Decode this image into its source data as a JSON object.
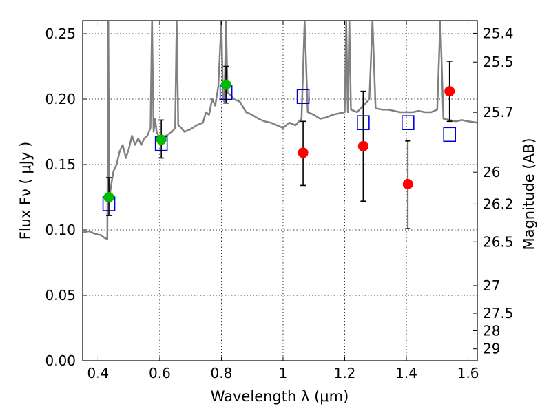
{
  "chart_data": {
    "type": "scatter",
    "title": "",
    "xlabel": "Wavelength  λ (μm)",
    "ylabel": "Flux  Fν  ( μJy )",
    "y2label": "Magnitude (AB)",
    "xlim": [
      0.35,
      1.63
    ],
    "ylim": [
      0.0,
      0.26
    ],
    "grid": true,
    "x_ticks": [
      0.4,
      0.6,
      0.8,
      1.0,
      1.2,
      1.4,
      1.6
    ],
    "x_tick_labels": [
      "0.4",
      "0.6",
      "0.8",
      "1",
      "1.2",
      "1.4",
      "1.6"
    ],
    "y_ticks": [
      0.0,
      0.05,
      0.1,
      0.15,
      0.2,
      0.25
    ],
    "y_tick_labels": [
      "0.00",
      "0.05",
      "0.10",
      "0.15",
      "0.20",
      "0.25"
    ],
    "y2_ticks": [
      {
        "label": "25.4",
        "flux": 0.2503
      },
      {
        "label": "25.5",
        "flux": 0.2283
      },
      {
        "label": "25.7",
        "flux": 0.1899
      },
      {
        "label": "26",
        "flux": 0.1441
      },
      {
        "label": "26.2",
        "flux": 0.1198
      },
      {
        "label": "26.5",
        "flux": 0.0909
      },
      {
        "label": "27",
        "flux": 0.0574
      },
      {
        "label": "27.5",
        "flux": 0.0363
      },
      {
        "label": "28",
        "flux": 0.0229
      },
      {
        "label": "29",
        "flux": 0.0091
      }
    ],
    "colors": {
      "model": "#808080",
      "green_points": "#00bb00",
      "red_points": "#ff0000",
      "squares": "#0000dd",
      "errorbars": "#000000"
    },
    "series": [
      {
        "kind": "line",
        "x": [
          0.35,
          0.37,
          0.39,
          0.41,
          0.42,
          0.43,
          0.433,
          0.436,
          0.44,
          0.445,
          0.45,
          0.46,
          0.47,
          0.48,
          0.49,
          0.5,
          0.51,
          0.52,
          0.53,
          0.54,
          0.55,
          0.56,
          0.57,
          0.575,
          0.58,
          0.585,
          0.59,
          0.6,
          0.62,
          0.64,
          0.65,
          0.655,
          0.66,
          0.67,
          0.68,
          0.7,
          0.72,
          0.74,
          0.75,
          0.76,
          0.77,
          0.78,
          0.79,
          0.8,
          0.805,
          0.81,
          0.815,
          0.82,
          0.83,
          0.84,
          0.86,
          0.88,
          0.9,
          0.92,
          0.94,
          0.96,
          0.98,
          1.0,
          1.02,
          1.04,
          1.06,
          1.07,
          1.08,
          1.1,
          1.12,
          1.14,
          1.16,
          1.18,
          1.2,
          1.205,
          1.21,
          1.215,
          1.22,
          1.24,
          1.26,
          1.28,
          1.29,
          1.3,
          1.32,
          1.34,
          1.36,
          1.38,
          1.4,
          1.42,
          1.44,
          1.46,
          1.48,
          1.5,
          1.51,
          1.52,
          1.54,
          1.56,
          1.58,
          1.6,
          1.63
        ],
        "y": [
          0.098,
          0.099,
          0.097,
          0.096,
          0.094,
          0.093,
          0.26,
          0.125,
          0.13,
          0.138,
          0.145,
          0.15,
          0.16,
          0.165,
          0.155,
          0.162,
          0.172,
          0.165,
          0.17,
          0.165,
          0.17,
          0.172,
          0.178,
          0.26,
          0.175,
          0.185,
          0.175,
          0.17,
          0.172,
          0.175,
          0.178,
          0.26,
          0.18,
          0.178,
          0.175,
          0.177,
          0.18,
          0.182,
          0.19,
          0.188,
          0.2,
          0.195,
          0.21,
          0.26,
          0.2,
          0.198,
          0.26,
          0.205,
          0.203,
          0.2,
          0.198,
          0.19,
          0.188,
          0.185,
          0.183,
          0.182,
          0.18,
          0.178,
          0.182,
          0.18,
          0.185,
          0.26,
          0.19,
          0.188,
          0.185,
          0.186,
          0.188,
          0.189,
          0.19,
          0.26,
          0.19,
          0.26,
          0.192,
          0.19,
          0.195,
          0.2,
          0.26,
          0.193,
          0.192,
          0.192,
          0.191,
          0.19,
          0.19,
          0.19,
          0.191,
          0.19,
          0.19,
          0.192,
          0.26,
          0.185,
          0.184,
          0.183,
          0.184,
          0.183,
          0.182
        ]
      },
      {
        "kind": "squares",
        "x": [
          0.435,
          0.605,
          0.815,
          1.065,
          1.26,
          1.405,
          1.54
        ],
        "y": [
          0.12,
          0.166,
          0.205,
          0.202,
          0.182,
          0.182,
          0.173
        ]
      },
      {
        "kind": "points",
        "color": "green",
        "x": [
          0.435,
          0.605,
          0.815
        ],
        "y": [
          0.125,
          0.169,
          0.211
        ],
        "err_lo": [
          0.111,
          0.155,
          0.197
        ],
        "err_hi": [
          0.14,
          0.184,
          0.225
        ]
      },
      {
        "kind": "points",
        "color": "red",
        "x": [
          1.065,
          1.26,
          1.405,
          1.54
        ],
        "y": [
          0.159,
          0.164,
          0.135,
          0.206
        ],
        "err_lo": [
          0.134,
          0.122,
          0.101,
          0.183
        ],
        "err_hi": [
          0.183,
          0.206,
          0.168,
          0.229
        ]
      }
    ]
  }
}
